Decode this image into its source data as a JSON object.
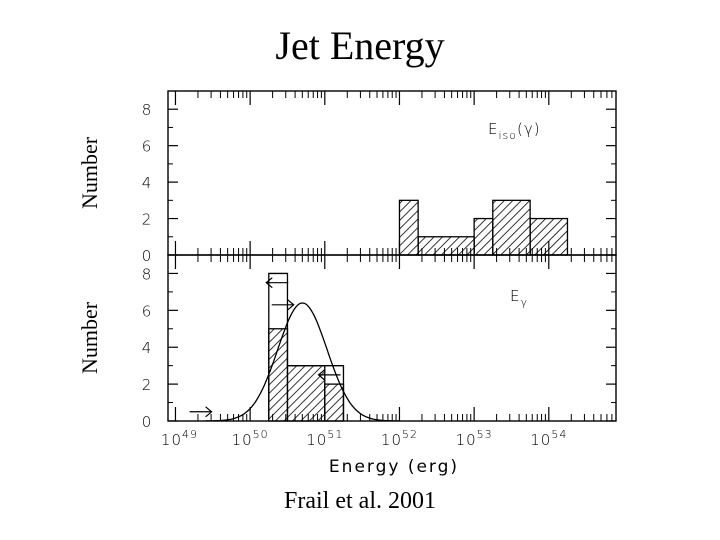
{
  "title": "Jet Energy",
  "caption": "Frail et al. 2001",
  "chart_data": {
    "type": "histogram",
    "x_scale": "log",
    "xlabel": "Energy (erg)",
    "x_tick_labels": [
      "10^49",
      "10^50",
      "10^51",
      "10^52",
      "10^53",
      "10^54"
    ],
    "x_tick_values": [
      49,
      50,
      51,
      52,
      53,
      54
    ],
    "xlim": [
      48.9,
      54.9
    ],
    "panels": [
      {
        "id": "top",
        "label": "E_iso(γ)",
        "ylabel": "Number",
        "ylim": [
          0,
          9
        ],
        "y_ticks": [
          0,
          2,
          4,
          6,
          8
        ],
        "bars": [
          {
            "x0": 52.0,
            "x1": 52.25,
            "count": 3
          },
          {
            "x0": 52.25,
            "x1": 53.0,
            "count": 1
          },
          {
            "x0": 53.0,
            "x1": 53.25,
            "count": 2
          },
          {
            "x0": 53.25,
            "x1": 53.75,
            "count": 3
          },
          {
            "x0": 53.75,
            "x1": 54.25,
            "count": 2
          }
        ]
      },
      {
        "id": "bottom",
        "label": "E_γ",
        "ylabel": "Number",
        "ylim": [
          0,
          9
        ],
        "y_ticks": [
          0,
          2,
          4,
          6,
          8
        ],
        "bars": [
          {
            "x0": 50.25,
            "x1": 50.5,
            "count": 5
          },
          {
            "x0": 50.5,
            "x1": 51.0,
            "count": 3
          },
          {
            "x0": 51.0,
            "x1": 51.25,
            "count": 2
          }
        ],
        "upper_limit_steps": [
          {
            "x0": 50.25,
            "x1": 50.5,
            "count": 8
          },
          {
            "x0": 50.5,
            "x1": 51.0,
            "count": 3
          },
          {
            "x0": 51.0,
            "x1": 51.25,
            "count": 3
          }
        ],
        "limit_arrows": [
          {
            "x": 49.35,
            "y": 0.5,
            "dir": "right"
          },
          {
            "x": 50.35,
            "y": 7.5,
            "dir": "left"
          },
          {
            "x": 50.45,
            "y": 6.3,
            "dir": "right"
          },
          {
            "x": 51.05,
            "y": 2.5,
            "dir": "left"
          }
        ],
        "gaussian_fit": {
          "mean": 50.7,
          "sigma": 0.33,
          "peak": 6.4
        }
      }
    ]
  }
}
